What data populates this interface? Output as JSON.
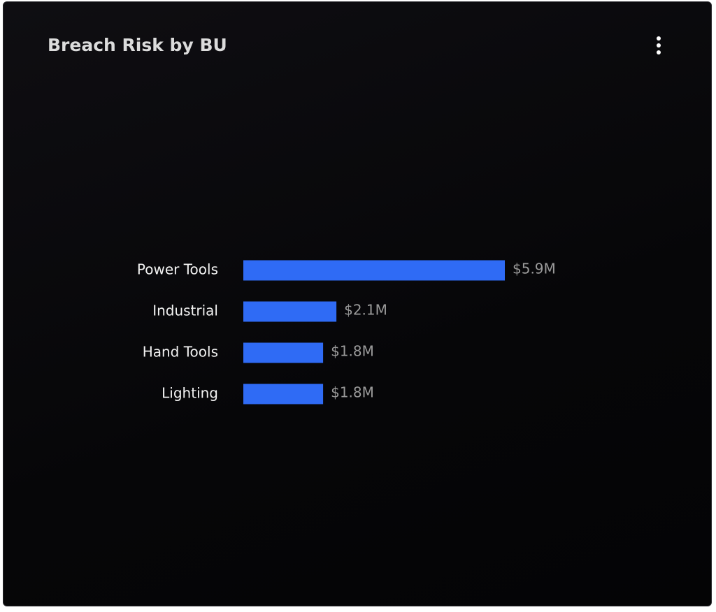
{
  "chart_data": {
    "type": "bar",
    "orientation": "horizontal",
    "title": "Breach Risk by BU",
    "categories": [
      "Power Tools",
      "Industrial",
      "Hand Tools",
      "Lighting"
    ],
    "values": [
      5.9,
      2.1,
      1.8,
      1.8
    ],
    "value_labels": [
      "$5.9M",
      "$2.1M",
      "$1.8M",
      "$1.8M"
    ],
    "color": "#2f6bf5"
  }
}
